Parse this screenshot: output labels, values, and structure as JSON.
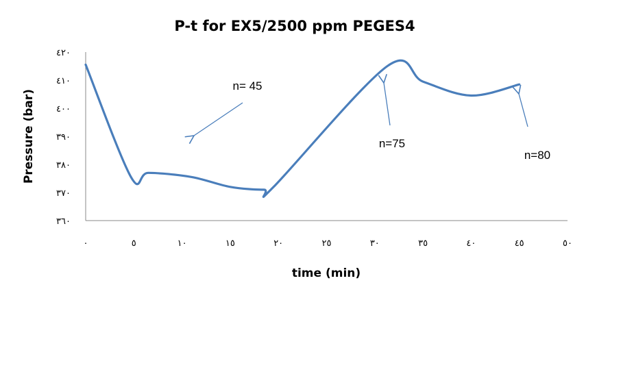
{
  "chart_data": {
    "type": "line",
    "title": "P-t for EX5/2500 ppm PEGES4",
    "xlabel": "time (min)",
    "ylabel": "Pressure (bar)",
    "xlim": [
      0,
      50
    ],
    "ylim": [
      360,
      420
    ],
    "x_ticks": [
      0,
      5,
      10,
      15,
      20,
      25,
      30,
      35,
      40,
      45,
      50
    ],
    "y_ticks": [
      360,
      370,
      380,
      390,
      400,
      410,
      420
    ],
    "x_tick_labels": [
      "٠",
      "٥",
      "١٠",
      "١٥",
      "٢٠",
      "٢٥",
      "٣٠",
      "٣٥",
      "٤٠",
      "٤٥",
      "٥٠"
    ],
    "y_tick_labels": [
      "٣٦٠",
      "٣٧٠",
      "٣٨٠",
      "٣٩٠",
      "٤٠٠",
      "٤١٠",
      "٤٢٠"
    ],
    "grid": false,
    "series": [
      {
        "color": "#4a7ebb",
        "x": [
          0,
          4.7,
          6.5,
          11,
          15,
          18.5,
          19.5,
          31.3,
          35,
          40,
          45
        ],
        "y": [
          415.5,
          375.5,
          377,
          375.5,
          372,
          371,
          372,
          415,
          409.5,
          404.5,
          408.5
        ]
      }
    ],
    "annotations": [
      {
        "text": "n= 45",
        "x": 16,
        "y": 397
      },
      {
        "text": "n=75",
        "x": 31.2,
        "y": 408
      },
      {
        "text": "n=80",
        "x": 44.7,
        "y": 406.5
      }
    ]
  }
}
